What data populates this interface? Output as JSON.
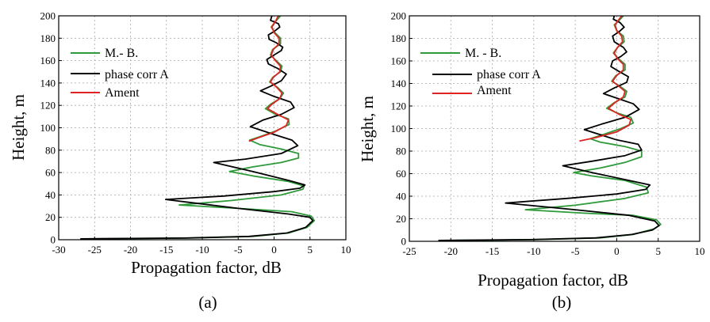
{
  "chart_data": [
    {
      "type": "line",
      "panel_label": "(a)",
      "xlabel": "Propagation factor, dB",
      "ylabel": "Height, m",
      "xlim": [
        -30,
        10
      ],
      "ylim": [
        0,
        200
      ],
      "xticks": [
        "-30",
        "-25",
        "-20",
        "-15",
        "-10",
        "-5",
        "0",
        "5",
        "10"
      ],
      "yticks": [
        "0",
        "20",
        "40",
        "60",
        "80",
        "100",
        "120",
        "140",
        "160",
        "180",
        "200"
      ],
      "grid": true,
      "legend_position": "top-left",
      "series": [
        {
          "name": "M.- B.",
          "color": "#2e9a3a",
          "points": [
            [
              -26,
              0.8
            ],
            [
              -12,
              1.5
            ],
            [
              -3,
              3
            ],
            [
              2,
              6
            ],
            [
              4.6,
              11
            ],
            [
              5.6,
              17
            ],
            [
              5.2,
              21
            ],
            [
              2.5,
              25
            ],
            [
              -5,
              28
            ],
            [
              -13.2,
              31
            ],
            [
              -6,
              35
            ],
            [
              1,
              40
            ],
            [
              4,
              45
            ],
            [
              4.2,
              48
            ],
            [
              2,
              52
            ],
            [
              -3,
              57
            ],
            [
              -6.2,
              61
            ],
            [
              -3,
              65
            ],
            [
              1,
              69
            ],
            [
              3.4,
              73
            ],
            [
              3.4,
              77
            ],
            [
              1,
              81
            ],
            [
              -2,
              85
            ],
            [
              -3.4,
              89
            ],
            [
              -2,
              92
            ],
            [
              0.2,
              97
            ],
            [
              2.1,
              103
            ],
            [
              2,
              108
            ],
            [
              0.2,
              112
            ],
            [
              -1.2,
              117
            ],
            [
              -0.5,
              121
            ],
            [
              0.8,
              126
            ],
            [
              1.3,
              131
            ],
            [
              0.5,
              136
            ],
            [
              -0.6,
              141
            ],
            [
              -0.2,
              145
            ],
            [
              0.9,
              150
            ],
            [
              1.1,
              155
            ],
            [
              0.3,
              160
            ],
            [
              -0.5,
              165
            ],
            [
              -0.2,
              170
            ],
            [
              0.9,
              175
            ],
            [
              0.9,
              180
            ],
            [
              0.1,
              185
            ],
            [
              -0.4,
              190
            ],
            [
              0.2,
              195
            ],
            [
              0.9,
              200
            ]
          ]
        },
        {
          "name": "phase corr A",
          "color": "#000000",
          "points": [
            [
              -27,
              0.8
            ],
            [
              -12.5,
              1.5
            ],
            [
              -3.5,
              3
            ],
            [
              1.8,
              6
            ],
            [
              4.4,
              11
            ],
            [
              5.4,
              17
            ],
            [
              5,
              20
            ],
            [
              2,
              23
            ],
            [
              -5,
              28
            ],
            [
              -15.1,
              36
            ],
            [
              -7,
              39
            ],
            [
              0,
              43
            ],
            [
              3.6,
              46
            ],
            [
              4.3,
              49
            ],
            [
              2,
              53
            ],
            [
              -3,
              61
            ],
            [
              -8.4,
              69
            ],
            [
              -4,
              72
            ],
            [
              1,
              77
            ],
            [
              3.3,
              84
            ],
            [
              2.5,
              89
            ],
            [
              0,
              94
            ],
            [
              -3.3,
              101
            ],
            [
              -1.5,
              107
            ],
            [
              1,
              112
            ],
            [
              2.8,
              118
            ],
            [
              2.3,
              123
            ],
            [
              0,
              128
            ],
            [
              -1.9,
              133
            ],
            [
              -0.5,
              137
            ],
            [
              1,
              142
            ],
            [
              1.7,
              148
            ],
            [
              0.5,
              153
            ],
            [
              -0.8,
              157
            ],
            [
              -1,
              161
            ],
            [
              0,
              165
            ],
            [
              1,
              169
            ],
            [
              1.2,
              172
            ],
            [
              0.3,
              176
            ],
            [
              -0.7,
              179
            ],
            [
              -0.8,
              183
            ],
            [
              0,
              186
            ],
            [
              0.8,
              190
            ],
            [
              0.6,
              193
            ],
            [
              -0.5,
              196
            ],
            [
              -0.3,
              200
            ]
          ]
        },
        {
          "name": "Ament",
          "color": "#e02222",
          "points": [
            [
              -3.5,
              88
            ],
            [
              -2.2,
              91
            ],
            [
              0,
              96
            ],
            [
              1.7,
              102
            ],
            [
              2,
              107
            ],
            [
              0.5,
              112
            ],
            [
              -0.9,
              117
            ],
            [
              -0.3,
              121
            ],
            [
              0.8,
              126
            ],
            [
              1.1,
              131
            ],
            [
              0.4,
              136
            ],
            [
              -0.5,
              141
            ],
            [
              -0.1,
              145
            ],
            [
              0.8,
              150
            ],
            [
              0.9,
              155
            ],
            [
              0.2,
              160
            ],
            [
              -0.4,
              165
            ],
            [
              -0.1,
              170
            ],
            [
              0.7,
              175
            ],
            [
              0.7,
              180
            ],
            [
              0,
              185
            ],
            [
              -0.3,
              190
            ],
            [
              0.2,
              195
            ],
            [
              0.6,
              200
            ]
          ]
        }
      ]
    },
    {
      "type": "line",
      "panel_label": "(b)",
      "xlabel": "Propagation factor, dB",
      "ylabel": "Height, m",
      "xlim": [
        -25,
        10
      ],
      "ylim": [
        0,
        200
      ],
      "xticks": [
        "-25",
        "-20",
        "-15",
        "-10",
        "-5",
        "0",
        "5",
        "10"
      ],
      "yticks": [
        "0",
        "20",
        "40",
        "60",
        "80",
        "100",
        "120",
        "140",
        "160",
        "180",
        "200"
      ],
      "grid": true,
      "legend_position": "top-left",
      "series": [
        {
          "name": "M. - B.",
          "color": "#2e9a3a",
          "points": [
            [
              -21,
              0.8
            ],
            [
              -10,
              1.5
            ],
            [
              -2,
              3
            ],
            [
              2,
              6
            ],
            [
              4.5,
              11
            ],
            [
              5.3,
              15
            ],
            [
              4.8,
              19
            ],
            [
              2,
              23
            ],
            [
              -4,
              25
            ],
            [
              -11,
              28
            ],
            [
              -5,
              32
            ],
            [
              1,
              38
            ],
            [
              3.8,
              43
            ],
            [
              3.6,
              48
            ],
            [
              1,
              54
            ],
            [
              -3,
              58
            ],
            [
              -5.2,
              61
            ],
            [
              -2,
              65
            ],
            [
              1,
              70
            ],
            [
              3,
              75
            ],
            [
              3,
              80
            ],
            [
              1,
              84
            ],
            [
              -2,
              88
            ],
            [
              -3.2,
              91
            ],
            [
              -1.5,
              95
            ],
            [
              0.5,
              100
            ],
            [
              2,
              105
            ],
            [
              1.7,
              110
            ],
            [
              0,
              114
            ],
            [
              -1.2,
              118
            ],
            [
              -0.3,
              123
            ],
            [
              1,
              128
            ],
            [
              1.2,
              133
            ],
            [
              0.3,
              138
            ],
            [
              -0.6,
              142
            ],
            [
              -0.1,
              147
            ],
            [
              1,
              152
            ],
            [
              1,
              157
            ],
            [
              0.2,
              162
            ],
            [
              -0.4,
              167
            ],
            [
              0.1,
              172
            ],
            [
              0.9,
              177
            ],
            [
              0.8,
              182
            ],
            [
              0,
              187
            ],
            [
              -0.3,
              192
            ],
            [
              0.3,
              196
            ],
            [
              0.8,
              200
            ]
          ]
        },
        {
          "name": "phase corr A",
          "color": "#000000",
          "points": [
            [
              -21.5,
              0.8
            ],
            [
              -10.5,
              1.5
            ],
            [
              -2.5,
              3
            ],
            [
              1.8,
              6
            ],
            [
              4.3,
              10
            ],
            [
              5.1,
              14
            ],
            [
              4.6,
              18
            ],
            [
              1.5,
              23
            ],
            [
              -5,
              28
            ],
            [
              -13.4,
              34
            ],
            [
              -6,
              38
            ],
            [
              0,
              42
            ],
            [
              3.5,
              46
            ],
            [
              4,
              50
            ],
            [
              1.5,
              54
            ],
            [
              -3,
              61
            ],
            [
              -6.5,
              67
            ],
            [
              -3,
              71
            ],
            [
              1,
              76
            ],
            [
              3,
              81
            ],
            [
              2.6,
              86
            ],
            [
              0,
              90
            ],
            [
              -3.9,
              99
            ],
            [
              -1.8,
              104
            ],
            [
              1,
              110
            ],
            [
              2.7,
              117
            ],
            [
              2,
              122
            ],
            [
              0,
              127
            ],
            [
              -1.6,
              131
            ],
            [
              -0.3,
              136
            ],
            [
              1.2,
              141
            ],
            [
              1.4,
              146
            ],
            [
              0.2,
              151
            ],
            [
              -0.7,
              155
            ],
            [
              -0.5,
              160
            ],
            [
              0.5,
              164
            ],
            [
              1.2,
              168
            ],
            [
              0.8,
              172
            ],
            [
              -0.3,
              177
            ],
            [
              -0.5,
              182
            ],
            [
              0.3,
              186
            ],
            [
              0.9,
              190
            ],
            [
              0.4,
              194
            ],
            [
              -0.4,
              197
            ],
            [
              -0.3,
              200
            ]
          ]
        },
        {
          "name": "Ament",
          "color": "#e02222",
          "points": [
            [
              -4.5,
              89
            ],
            [
              -2.5,
              92
            ],
            [
              0,
              97
            ],
            [
              1.5,
              103
            ],
            [
              1.7,
              108
            ],
            [
              0.2,
              113
            ],
            [
              -1,
              118
            ],
            [
              -0.2,
              123
            ],
            [
              0.8,
              128
            ],
            [
              1,
              133
            ],
            [
              0.2,
              138
            ],
            [
              -0.5,
              142
            ],
            [
              0,
              147
            ],
            [
              0.8,
              152
            ],
            [
              0.8,
              157
            ],
            [
              0.1,
              162
            ],
            [
              -0.3,
              167
            ],
            [
              0.1,
              172
            ],
            [
              0.7,
              177
            ],
            [
              0.6,
              182
            ],
            [
              0,
              187
            ],
            [
              -0.2,
              192
            ],
            [
              0.2,
              196
            ],
            [
              0.6,
              200
            ]
          ]
        }
      ]
    }
  ]
}
